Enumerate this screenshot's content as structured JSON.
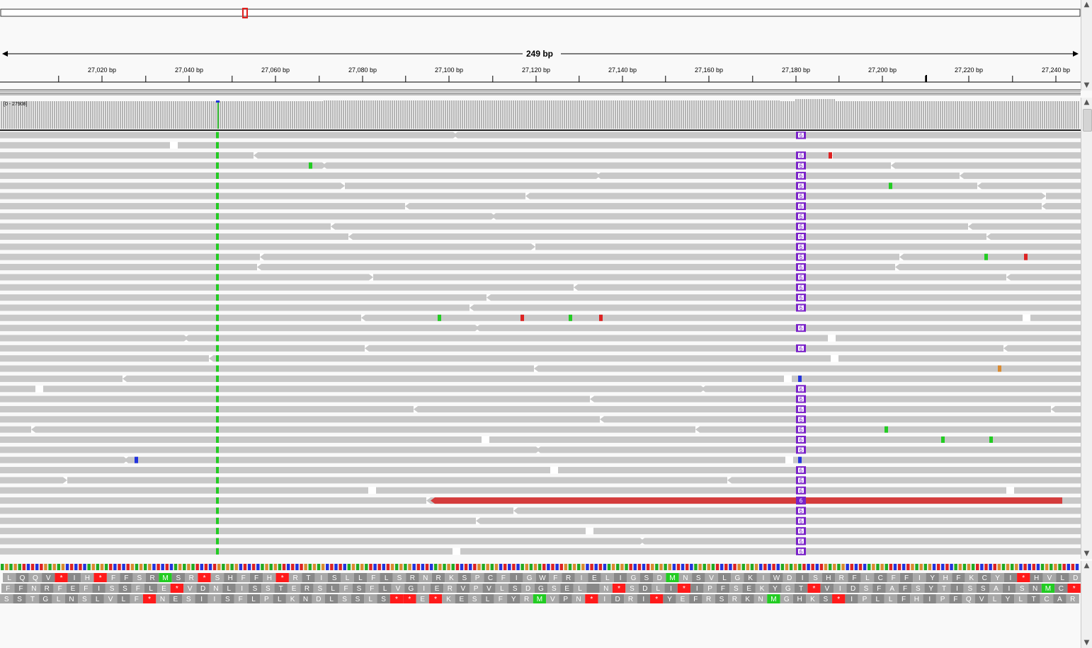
{
  "ruler": {
    "span_label": "249 bp",
    "ticks": [
      {
        "label": "27,020 bp",
        "x": 144
      },
      {
        "label": "27,040 bp",
        "x": 267
      },
      {
        "label": "27,060 bp",
        "x": 389
      },
      {
        "label": "27,080 bp",
        "x": 512
      },
      {
        "label": "27,100 bp",
        "x": 634
      },
      {
        "label": "27,120 bp",
        "x": 757
      },
      {
        "label": "27,140 bp",
        "x": 879
      },
      {
        "label": "27,160 bp",
        "x": 1001
      },
      {
        "label": "27,180 bp",
        "x": 1124
      },
      {
        "label": "27,200 bp",
        "x": 1246
      },
      {
        "label": "27,220 bp",
        "x": 1368
      },
      {
        "label": "27,240 bp",
        "x": 1491
      }
    ]
  },
  "coverage": {
    "range_label": "[0 - 27908]"
  },
  "alignments": {
    "insertion_label": "6",
    "colors": {
      "read": "#c8c8c8",
      "A": "#22cc22",
      "C": "#2233dd",
      "G": "#d98a30",
      "T": "#dd2222",
      "insertion": "#7a22c8",
      "discordant": "#d43c3c"
    }
  },
  "sequence": {
    "frame1": "LQQV*IH*FFSRMSR*SHFFH*RTISLLFLSRNRKSPCFIGWFRIELIGSDMNSVLGKIWDISHRFLCFFIYHFKCYI*HVLD",
    "frame2": "FFNRFEFISSFLE*VDNLISSTERSLFSFLVGIERVPVLSDGSEL N*SDLI*IPFSEKYGT*VIDSFAFSYTISSAISNMC*",
    "frame3": "SSTGLNSLVLF*NESIISFLPLKNDLSSLS**E*KESLFYRMVPN*IDRI*YEFRSRKNMGHKS*IPLLFHIPFQVLYLTCAR"
  }
}
